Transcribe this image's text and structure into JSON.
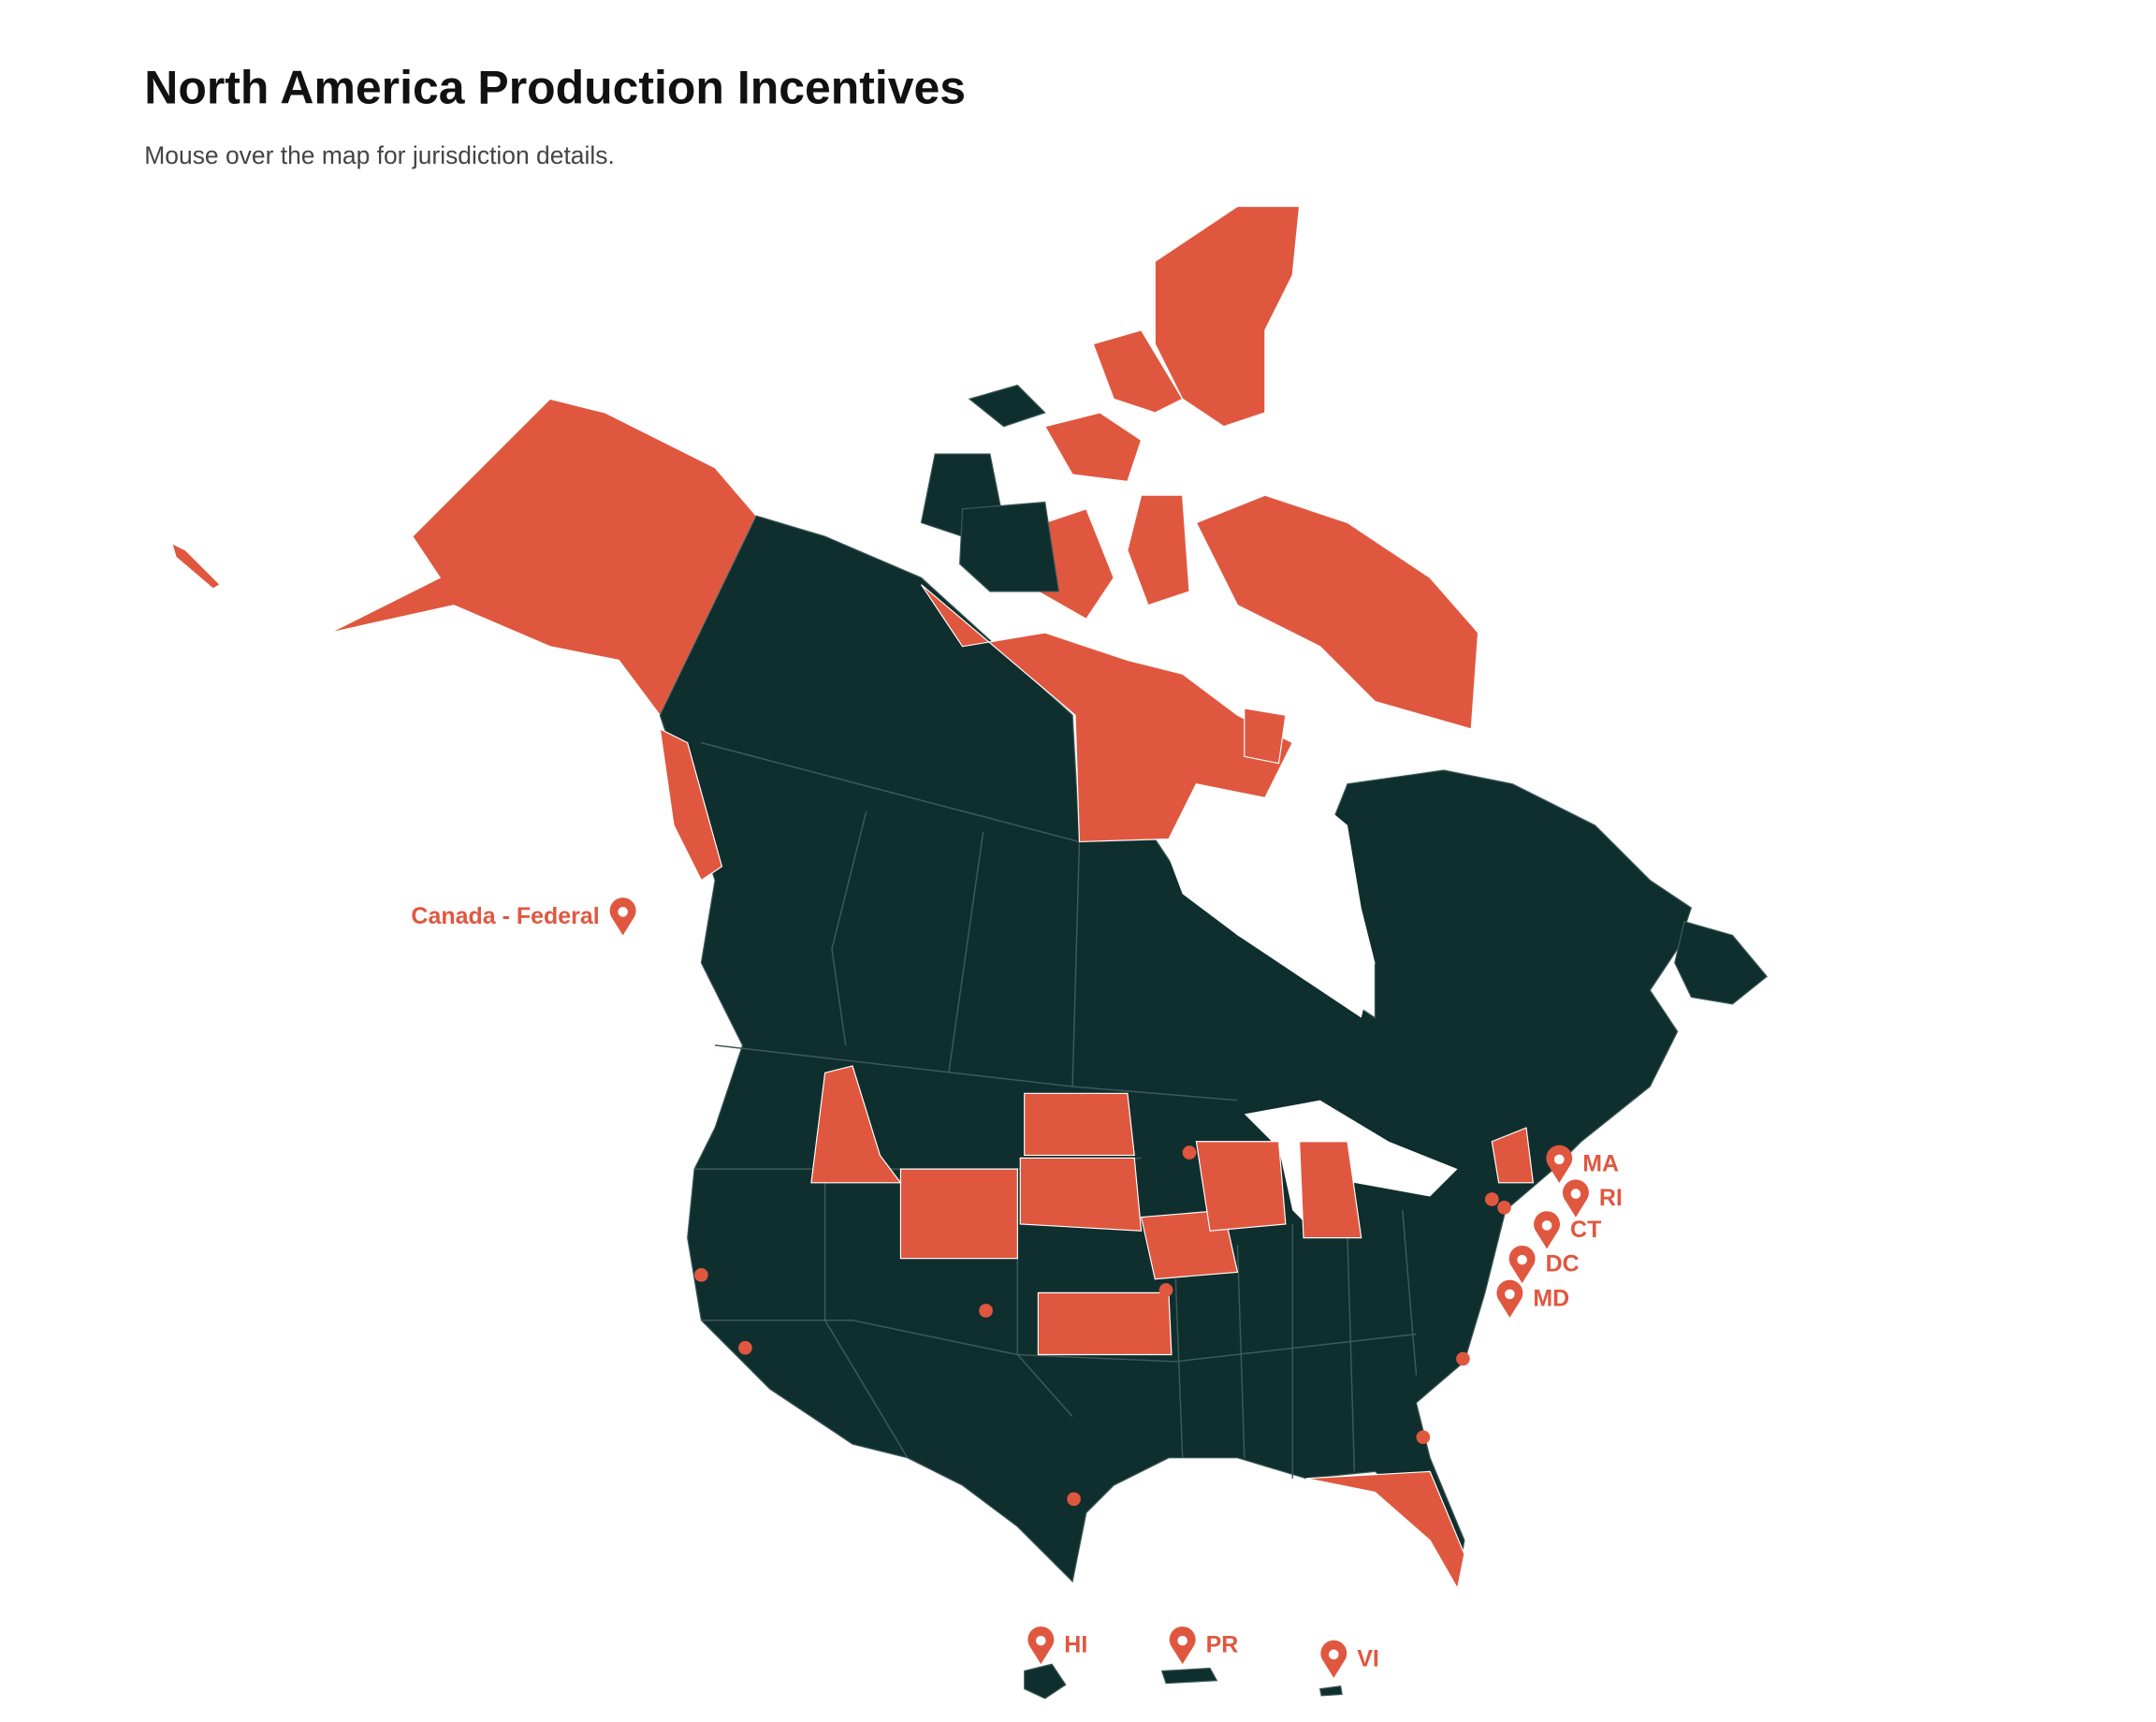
{
  "header": {
    "title": "North America Production Incentives",
    "subtitle": "Mouse over the map for jurisdiction details."
  },
  "markers": [
    {
      "label": "Canada - Federal"
    },
    {
      "label": "MA"
    },
    {
      "label": "RI"
    },
    {
      "label": "CT"
    },
    {
      "label": "DC"
    },
    {
      "label": "MD"
    },
    {
      "label": "HI"
    },
    {
      "label": "PR"
    },
    {
      "label": "VI"
    }
  ]
}
